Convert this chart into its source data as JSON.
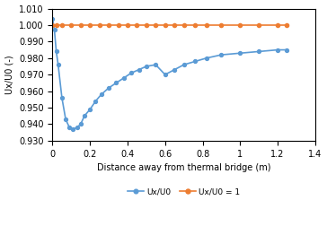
{
  "title": "",
  "xlabel": "Distance away from thermal bridge (m)",
  "ylabel": "Ux/U0 (-)",
  "xlim": [
    0,
    1.4
  ],
  "ylim": [
    0.93,
    1.01
  ],
  "yticks": [
    0.93,
    0.94,
    0.95,
    0.96,
    0.97,
    0.98,
    0.99,
    1.0,
    1.01
  ],
  "xticks": [
    0,
    0.2,
    0.4,
    0.6,
    0.8,
    1.0,
    1.2,
    1.4
  ],
  "blue_x": [
    0.0,
    0.01,
    0.02,
    0.03,
    0.05,
    0.07,
    0.09,
    0.11,
    0.13,
    0.15,
    0.17,
    0.2,
    0.23,
    0.26,
    0.3,
    0.34,
    0.38,
    0.42,
    0.46,
    0.5,
    0.55,
    0.6,
    0.65,
    0.7,
    0.76,
    0.82,
    0.9,
    1.0,
    1.1,
    1.2,
    1.25
  ],
  "blue_y": [
    1.004,
    0.997,
    0.984,
    0.976,
    0.956,
    0.943,
    0.938,
    0.937,
    0.938,
    0.94,
    0.945,
    0.949,
    0.954,
    0.958,
    0.962,
    0.965,
    0.968,
    0.971,
    0.973,
    0.975,
    0.976,
    0.97,
    0.973,
    0.976,
    0.978,
    0.98,
    0.982,
    0.983,
    0.984,
    0.985,
    0.985
  ],
  "orange_x": [
    0.0,
    0.02,
    0.05,
    0.1,
    0.15,
    0.2,
    0.25,
    0.3,
    0.35,
    0.4,
    0.45,
    0.5,
    0.55,
    0.6,
    0.65,
    0.7,
    0.76,
    0.82,
    0.9,
    1.0,
    1.1,
    1.2,
    1.25
  ],
  "orange_y": [
    1.0,
    1.0,
    1.0,
    1.0,
    1.0,
    1.0,
    1.0,
    1.0,
    1.0,
    1.0,
    1.0,
    1.0,
    1.0,
    1.0,
    1.0,
    1.0,
    1.0,
    1.0,
    1.0,
    1.0,
    1.0,
    1.0,
    1.0
  ],
  "blue_color": "#5b9bd5",
  "orange_color": "#ed7d31",
  "legend_blue": "Ux/U0",
  "legend_orange": "Ux/U0 = 1",
  "marker_blue": "o",
  "marker_orange": "o",
  "markersize_blue": 2.8,
  "markersize_orange": 3.0,
  "linewidth": 1.2,
  "figsize": [
    3.64,
    2.62
  ],
  "dpi": 100
}
